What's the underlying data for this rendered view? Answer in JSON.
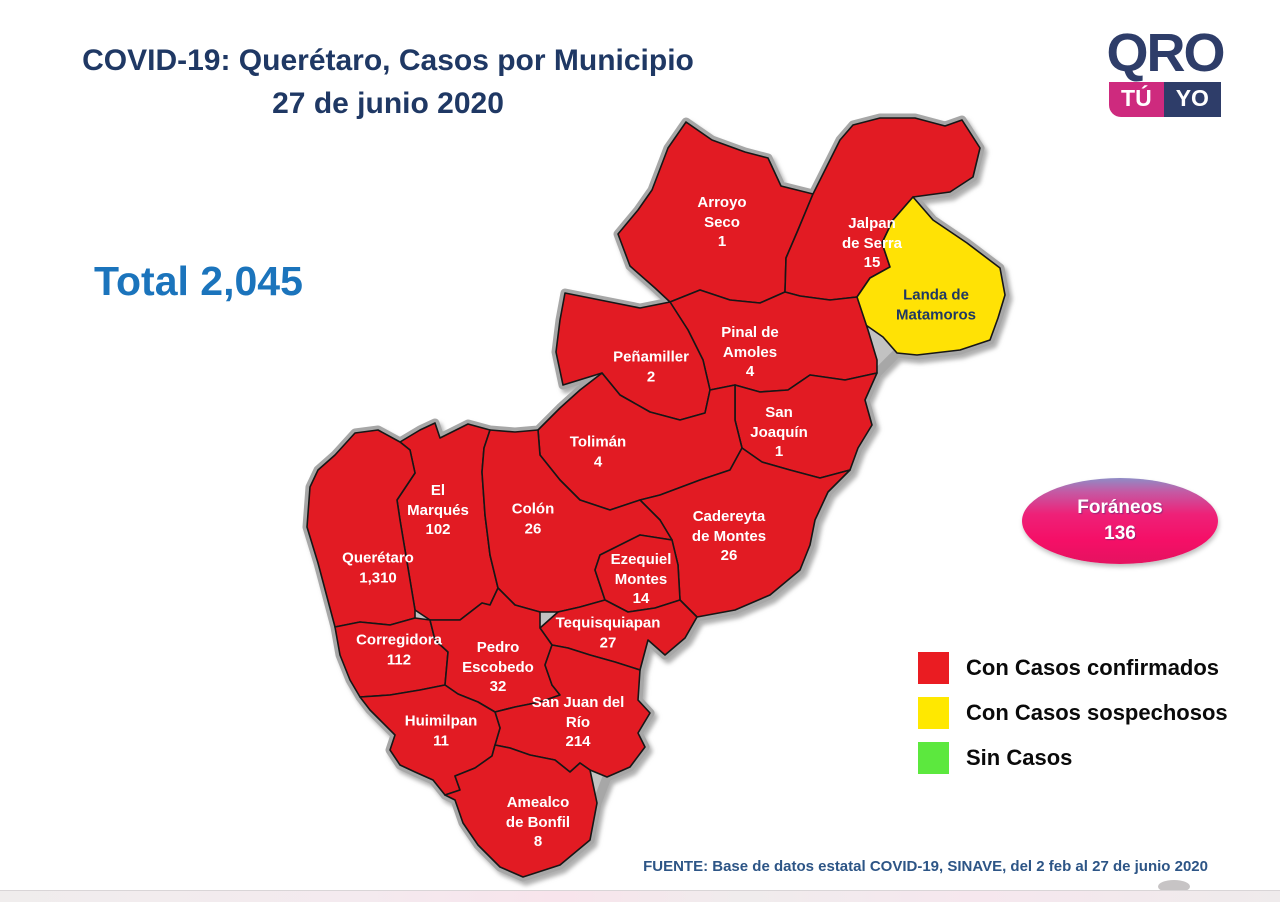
{
  "header": {
    "title_line1": "COVID-19: Querétaro, Casos por Municipio",
    "title_line2": "27 de junio 2020"
  },
  "total": {
    "label": "Total 2,045"
  },
  "logo": {
    "qro": "QRO",
    "tu": "TÚ",
    "yo": "YO"
  },
  "foraneos": {
    "label": "Foráneos",
    "value": "136"
  },
  "legend": {
    "items": [
      {
        "label": "Con Casos confirmados",
        "color": "#EA1C22"
      },
      {
        "label": "Con Casos sospechosos",
        "color": "#FFE800"
      },
      {
        "label": "Sin Casos",
        "color": "#5CE83E"
      }
    ]
  },
  "map": {
    "status_colors": {
      "confirmed": "#E21B23",
      "suspected": "#FFE205",
      "none": "#5CE83E"
    },
    "municipalities": [
      {
        "id": "arroyo-seco",
        "name": "Arroyo\nSeco",
        "cases": "1",
        "status": "confirmed"
      },
      {
        "id": "jalpan",
        "name": "Jalpan\nde Serra",
        "cases": "15",
        "status": "confirmed"
      },
      {
        "id": "landa",
        "name": "Landa de\nMatamoros",
        "cases": "",
        "status": "suspected"
      },
      {
        "id": "pinal",
        "name": "Pinal de\nAmoles",
        "cases": "4",
        "status": "confirmed"
      },
      {
        "id": "penamiller",
        "name": "Peñamiller",
        "cases": "2",
        "status": "confirmed"
      },
      {
        "id": "san-joaquin",
        "name": "San\nJoaquín",
        "cases": "1",
        "status": "confirmed"
      },
      {
        "id": "toliman",
        "name": "Tolimán",
        "cases": "4",
        "status": "confirmed"
      },
      {
        "id": "el-marques",
        "name": "El\nMarqués",
        "cases": "102",
        "status": "confirmed"
      },
      {
        "id": "colon",
        "name": "Colón",
        "cases": "26",
        "status": "confirmed"
      },
      {
        "id": "cadereyta",
        "name": "Cadereyta\nde Montes",
        "cases": "26",
        "status": "confirmed"
      },
      {
        "id": "queretaro",
        "name": "Querétaro",
        "cases": "1,310",
        "status": "confirmed"
      },
      {
        "id": "ezequiel-montes",
        "name": "Ezequiel\nMontes",
        "cases": "14",
        "status": "confirmed"
      },
      {
        "id": "tequisquiapan",
        "name": "Tequisquiapan",
        "cases": "27",
        "status": "confirmed"
      },
      {
        "id": "corregidora",
        "name": "Corregidora",
        "cases": "112",
        "status": "confirmed"
      },
      {
        "id": "pedro-escobedo",
        "name": "Pedro\nEscobedo",
        "cases": "32",
        "status": "confirmed"
      },
      {
        "id": "san-juan-del-rio",
        "name": "San Juan del\nRío",
        "cases": "214",
        "status": "confirmed"
      },
      {
        "id": "huimilpan",
        "name": "Huimilpan",
        "cases": "11",
        "status": "confirmed"
      },
      {
        "id": "amealco",
        "name": "Amealco\nde Bonfil",
        "cases": "8",
        "status": "confirmed"
      }
    ]
  },
  "chart_data": {
    "type": "choropleth-map",
    "title": "COVID-19: Querétaro, Casos por Municipio — 27 de junio 2020",
    "categories": [
      "Arroyo Seco",
      "Jalpan de Serra",
      "Landa de Matamoros",
      "Pinal de Amoles",
      "Peñamiller",
      "San Joaquín",
      "Tolimán",
      "El Marqués",
      "Colón",
      "Cadereyta de Montes",
      "Querétaro",
      "Ezequiel Montes",
      "Tequisquiapan",
      "Corregidora",
      "Pedro Escobedo",
      "San Juan del Río",
      "Huimilpan",
      "Amealco de Bonfil",
      "Foráneos"
    ],
    "values": [
      1,
      15,
      null,
      4,
      2,
      1,
      4,
      102,
      26,
      26,
      1310,
      14,
      27,
      112,
      32,
      214,
      11,
      8,
      136
    ],
    "total": 2045,
    "legend_position": "right",
    "source": "FUENTE: Base de datos estatal COVID-19, SINAVE, del 2 feb al 27 de junio 2020"
  },
  "footer": {
    "source": "FUENTE: Base de datos estatal COVID-19, SINAVE, del 2 feb al 27 de junio 2020"
  }
}
